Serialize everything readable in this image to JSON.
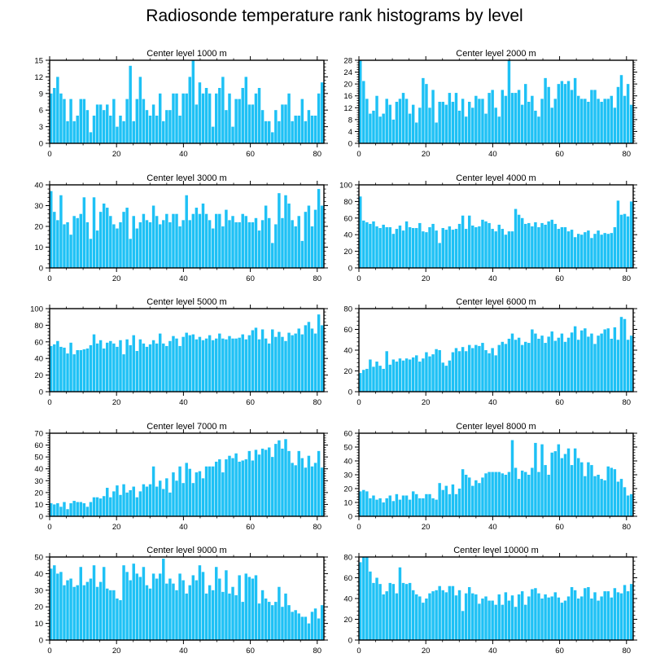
{
  "title": "Radiosonde temperature rank histograms by level",
  "colors": {
    "bar": "#1ec1f5",
    "bar_edge": "#ffffff",
    "axis": "#000000"
  },
  "chart_data": [
    {
      "type": "bar",
      "title": "Center level 1000 m",
      "xlim": [
        0,
        82
      ],
      "ylim": [
        0,
        15
      ],
      "xticks": [
        0,
        20,
        40,
        60,
        80
      ],
      "yticks": [
        0,
        3,
        6,
        9,
        12,
        15
      ],
      "values": [
        9,
        10,
        12,
        9,
        8,
        4,
        8,
        4,
        5,
        8,
        8,
        6,
        2,
        5,
        7,
        7,
        6,
        7,
        5,
        8,
        3,
        5,
        4,
        8,
        14,
        4,
        8,
        12,
        8,
        6,
        5,
        7,
        5,
        9,
        4,
        6,
        6,
        9,
        9,
        5,
        9,
        9,
        12,
        15,
        7,
        11,
        9,
        10,
        9,
        3,
        9,
        10,
        12,
        6,
        9,
        3,
        8,
        8,
        10,
        12,
        7,
        7,
        9,
        10,
        6,
        4,
        4,
        2,
        6,
        4,
        7,
        7,
        9,
        4,
        5,
        5,
        8,
        4,
        6,
        5,
        5,
        9,
        11
      ]
    },
    {
      "type": "bar",
      "title": "Center level 2000 m",
      "xlim": [
        0,
        82
      ],
      "ylim": [
        0,
        28
      ],
      "xticks": [
        0,
        20,
        40,
        60,
        80
      ],
      "yticks": [
        0,
        4,
        8,
        12,
        16,
        20,
        24,
        28
      ],
      "values": [
        28,
        21,
        15,
        10,
        11,
        16,
        9,
        10,
        15,
        13,
        8,
        14,
        15,
        17,
        15,
        10,
        13,
        7,
        12,
        22,
        20,
        12,
        18,
        7,
        14,
        14,
        13,
        17,
        14,
        17,
        11,
        15,
        9,
        14,
        12,
        16,
        15,
        15,
        10,
        17,
        18,
        12,
        9,
        18,
        16,
        28,
        17,
        17,
        18,
        13,
        20,
        14,
        16,
        11,
        9,
        15,
        22,
        19,
        12,
        15,
        20,
        21,
        20,
        21,
        18,
        22,
        16,
        15,
        15,
        14,
        18,
        18,
        15,
        14,
        15,
        15,
        16,
        12,
        19,
        23,
        16,
        20,
        13
      ]
    },
    {
      "type": "bar",
      "title": "Center level 3000 m",
      "xlim": [
        0,
        82
      ],
      "ylim": [
        0,
        40
      ],
      "xticks": [
        0,
        20,
        40,
        60,
        80
      ],
      "yticks": [
        0,
        10,
        20,
        30,
        40
      ],
      "values": [
        37,
        27,
        23,
        35,
        21,
        22,
        16,
        25,
        24,
        26,
        34,
        22,
        14,
        34,
        18,
        27,
        31,
        29,
        25,
        21,
        19,
        22,
        27,
        29,
        14,
        25,
        19,
        22,
        26,
        23,
        22,
        30,
        25,
        21,
        23,
        26,
        22,
        26,
        26,
        20,
        23,
        35,
        23,
        26,
        29,
        26,
        31,
        26,
        23,
        19,
        26,
        26,
        20,
        28,
        23,
        25,
        22,
        22,
        26,
        25,
        22,
        22,
        24,
        18,
        23,
        30,
        24,
        12,
        21,
        36,
        24,
        35,
        31,
        23,
        20,
        25,
        13,
        27,
        30,
        20,
        28,
        38,
        30
      ]
    },
    {
      "type": "bar",
      "title": "Center level 4000 m",
      "xlim": [
        0,
        82
      ],
      "ylim": [
        0,
        100
      ],
      "xticks": [
        0,
        20,
        40,
        60,
        80
      ],
      "yticks": [
        0,
        20,
        40,
        60,
        80,
        100
      ],
      "values": [
        86,
        57,
        55,
        53,
        56,
        50,
        48,
        52,
        49,
        49,
        41,
        47,
        51,
        45,
        56,
        49,
        48,
        48,
        54,
        44,
        43,
        49,
        53,
        45,
        30,
        48,
        46,
        50,
        46,
        47,
        53,
        63,
        47,
        63,
        51,
        49,
        50,
        58,
        56,
        54,
        47,
        44,
        52,
        47,
        40,
        44,
        44,
        71,
        64,
        60,
        53,
        54,
        50,
        55,
        49,
        54,
        52,
        56,
        58,
        53,
        47,
        49,
        49,
        44,
        46,
        37,
        41,
        40,
        43,
        45,
        36,
        41,
        45,
        40,
        42,
        41,
        42,
        49,
        81,
        64,
        65,
        62,
        80
      ]
    },
    {
      "type": "bar",
      "title": "Center level 5000 m",
      "xlim": [
        0,
        82
      ],
      "ylim": [
        0,
        100
      ],
      "xticks": [
        0,
        20,
        40,
        60,
        80
      ],
      "yticks": [
        0,
        20,
        40,
        60,
        80,
        100
      ],
      "values": [
        55,
        57,
        61,
        54,
        53,
        46,
        59,
        45,
        50,
        50,
        51,
        52,
        56,
        69,
        58,
        62,
        52,
        59,
        61,
        58,
        54,
        62,
        45,
        63,
        56,
        68,
        49,
        63,
        58,
        54,
        57,
        62,
        58,
        70,
        58,
        55,
        61,
        67,
        64,
        55,
        66,
        71,
        68,
        69,
        63,
        66,
        62,
        64,
        68,
        62,
        64,
        70,
        64,
        63,
        67,
        64,
        64,
        65,
        69,
        63,
        68,
        74,
        77,
        63,
        75,
        64,
        58,
        75,
        66,
        72,
        66,
        61,
        71,
        68,
        70,
        76,
        69,
        80,
        84,
        76,
        70,
        93,
        80
      ]
    },
    {
      "type": "bar",
      "title": "Center level 6000 m",
      "xlim": [
        0,
        82
      ],
      "ylim": [
        0,
        80
      ],
      "xticks": [
        0,
        20,
        40,
        60,
        80
      ],
      "yticks": [
        0,
        20,
        40,
        60,
        80
      ],
      "values": [
        18,
        21,
        22,
        31,
        24,
        29,
        25,
        22,
        39,
        26,
        31,
        29,
        32,
        30,
        32,
        31,
        33,
        35,
        29,
        32,
        38,
        34,
        36,
        41,
        40,
        28,
        25,
        30,
        38,
        42,
        39,
        43,
        39,
        45,
        42,
        45,
        44,
        47,
        40,
        37,
        42,
        35,
        45,
        48,
        46,
        51,
        56,
        50,
        52,
        45,
        48,
        47,
        60,
        56,
        51,
        54,
        47,
        53,
        58,
        49,
        52,
        56,
        48,
        52,
        57,
        63,
        50,
        59,
        61,
        53,
        56,
        46,
        54,
        56,
        60,
        61,
        51,
        62,
        50,
        72,
        70,
        50,
        54
      ]
    },
    {
      "type": "bar",
      "title": "Center level 7000 m",
      "xlim": [
        0,
        82
      ],
      "ylim": [
        0,
        70
      ],
      "xticks": [
        0,
        20,
        40,
        60,
        80
      ],
      "yticks": [
        0,
        10,
        20,
        30,
        40,
        50,
        60,
        70
      ],
      "values": [
        11,
        10,
        11,
        8,
        12,
        6,
        11,
        13,
        12,
        12,
        11,
        8,
        12,
        16,
        16,
        15,
        17,
        24,
        16,
        21,
        26,
        18,
        27,
        20,
        22,
        25,
        16,
        21,
        27,
        25,
        27,
        42,
        25,
        30,
        23,
        32,
        20,
        37,
        30,
        42,
        28,
        45,
        40,
        28,
        37,
        38,
        32,
        42,
        42,
        42,
        46,
        48,
        37,
        48,
        51,
        49,
        53,
        46,
        47,
        48,
        55,
        47,
        56,
        52,
        57,
        56,
        58,
        50,
        61,
        64,
        57,
        65,
        55,
        45,
        43,
        55,
        49,
        41,
        51,
        42,
        45,
        55,
        41
      ]
    },
    {
      "type": "bar",
      "title": "Center level 8000 m",
      "xlim": [
        0,
        82
      ],
      "ylim": [
        0,
        60
      ],
      "xticks": [
        0,
        20,
        40,
        60,
        80
      ],
      "yticks": [
        0,
        10,
        20,
        30,
        40,
        50,
        60
      ],
      "values": [
        18,
        19,
        18,
        13,
        15,
        12,
        13,
        10,
        13,
        15,
        11,
        16,
        12,
        15,
        15,
        12,
        18,
        16,
        13,
        13,
        16,
        16,
        13,
        12,
        24,
        19,
        22,
        16,
        23,
        16,
        20,
        34,
        30,
        28,
        22,
        26,
        24,
        28,
        31,
        32,
        32,
        32,
        32,
        31,
        30,
        32,
        55,
        35,
        27,
        33,
        32,
        30,
        35,
        53,
        32,
        52,
        37,
        30,
        46,
        47,
        52,
        42,
        45,
        49,
        37,
        49,
        42,
        39,
        29,
        39,
        37,
        29,
        30,
        27,
        26,
        36,
        35,
        34,
        25,
        27,
        21,
        15,
        16
      ]
    },
    {
      "type": "bar",
      "title": "Center level 9000 m",
      "xlim": [
        0,
        82
      ],
      "ylim": [
        0,
        50
      ],
      "xticks": [
        0,
        20,
        40,
        60,
        80
      ],
      "yticks": [
        0,
        10,
        20,
        30,
        40,
        50
      ],
      "values": [
        43,
        45,
        40,
        41,
        33,
        36,
        37,
        32,
        33,
        44,
        33,
        35,
        37,
        45,
        32,
        35,
        44,
        31,
        30,
        30,
        25,
        24,
        45,
        41,
        36,
        46,
        40,
        38,
        44,
        33,
        31,
        40,
        37,
        40,
        49,
        34,
        37,
        34,
        30,
        40,
        36,
        28,
        33,
        39,
        36,
        45,
        41,
        28,
        33,
        30,
        44,
        37,
        29,
        42,
        28,
        32,
        27,
        39,
        23,
        40,
        38,
        37,
        39,
        22,
        30,
        25,
        23,
        21,
        23,
        32,
        20,
        28,
        21,
        17,
        18,
        16,
        14,
        14,
        10,
        17,
        19,
        13,
        21
      ]
    },
    {
      "type": "bar",
      "title": "Center level 10000 m",
      "xlim": [
        0,
        82
      ],
      "ylim": [
        0,
        80
      ],
      "xticks": [
        0,
        20,
        40,
        60,
        80
      ],
      "yticks": [
        0,
        20,
        40,
        60,
        80
      ],
      "values": [
        75,
        80,
        80,
        66,
        55,
        60,
        54,
        44,
        47,
        55,
        54,
        45,
        70,
        55,
        54,
        55,
        48,
        44,
        42,
        36,
        40,
        45,
        47,
        48,
        52,
        48,
        46,
        52,
        52,
        43,
        48,
        28,
        45,
        51,
        45,
        44,
        35,
        40,
        42,
        38,
        38,
        34,
        44,
        34,
        46,
        38,
        43,
        32,
        44,
        47,
        34,
        42,
        49,
        50,
        45,
        40,
        44,
        41,
        42,
        46,
        41,
        36,
        38,
        42,
        51,
        48,
        40,
        42,
        50,
        51,
        40,
        46,
        38,
        42,
        47,
        47,
        41,
        50,
        46,
        45,
        53,
        47,
        54
      ]
    }
  ]
}
